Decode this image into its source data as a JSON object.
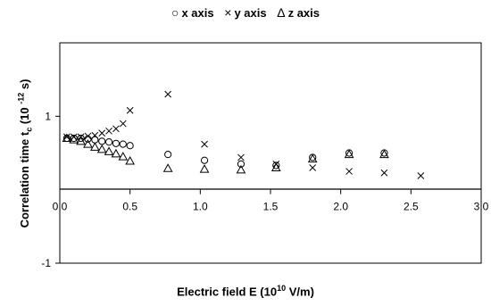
{
  "chart_data": {
    "type": "scatter",
    "legend": {
      "placement": "top-center",
      "entries": [
        {
          "symbol": "○",
          "label": "x axis"
        },
        {
          "symbol": "×",
          "label": "y axis"
        },
        {
          "symbol": "Δ",
          "label": "z axis"
        }
      ]
    },
    "ylabel": {
      "main": "Correlation time t",
      "sub": "c",
      "open": " (10 ",
      "exp": "-12",
      "close": " s)"
    },
    "xlabel": {
      "main": "Electric field E (10",
      "exp": "10",
      "rest": " V/m)"
    },
    "xlim": [
      0,
      3.0
    ],
    "ylim": [
      -1,
      2
    ],
    "xticks": [
      "0.0",
      "0.5",
      "1.0",
      "1.5",
      "2.0",
      "2.5",
      "3.0"
    ],
    "yticks": [
      "1",
      "-1"
    ],
    "series": [
      {
        "marker": "circle",
        "x": [
          0.05,
          0.1,
          0.15,
          0.2,
          0.25,
          0.3,
          0.35,
          0.4,
          0.45,
          0.5,
          0.77,
          1.03,
          1.29,
          1.54,
          1.8,
          2.06,
          2.31
        ],
        "y": [
          0.7,
          0.7,
          0.7,
          0.69,
          0.68,
          0.66,
          0.65,
          0.63,
          0.62,
          0.6,
          0.48,
          0.4,
          0.35,
          0.33,
          0.44,
          0.5,
          0.5
        ]
      },
      {
        "marker": "x",
        "x": [
          0.05,
          0.1,
          0.15,
          0.2,
          0.25,
          0.3,
          0.35,
          0.4,
          0.45,
          0.5,
          0.77,
          1.03,
          1.29,
          1.54,
          1.8,
          2.06,
          2.31,
          2.57
        ],
        "y": [
          0.72,
          0.72,
          0.72,
          0.73,
          0.74,
          0.77,
          0.8,
          0.83,
          0.9,
          1.08,
          1.3,
          0.62,
          0.44,
          0.35,
          0.3,
          0.25,
          0.23,
          0.19
        ]
      },
      {
        "marker": "triangle",
        "x": [
          0.05,
          0.1,
          0.15,
          0.2,
          0.25,
          0.3,
          0.35,
          0.4,
          0.45,
          0.5,
          0.77,
          1.03,
          1.29,
          1.54,
          1.8,
          2.06,
          2.31
        ],
        "y": [
          0.7,
          0.68,
          0.66,
          0.62,
          0.58,
          0.55,
          0.52,
          0.49,
          0.45,
          0.39,
          0.29,
          0.28,
          0.27,
          0.3,
          0.42,
          0.48,
          0.48
        ]
      }
    ]
  }
}
